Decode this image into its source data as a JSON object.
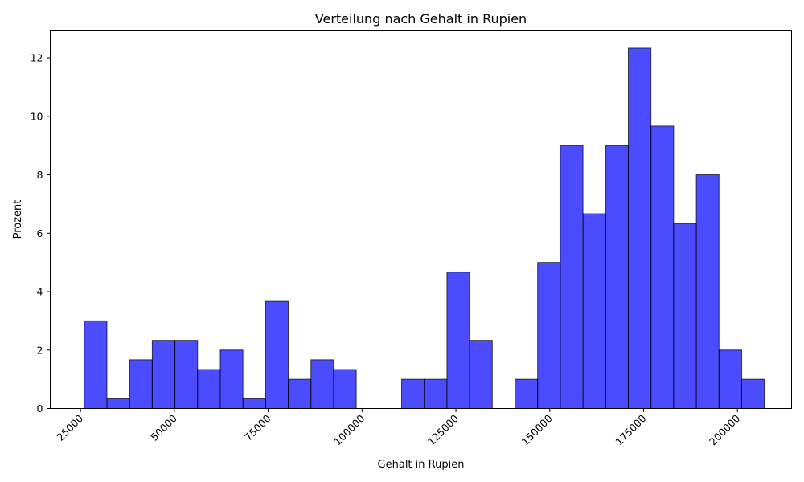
{
  "chart_data": {
    "type": "bar",
    "title": "Verteilung nach Gehalt in Rupien",
    "xlabel": "Gehalt in Rupien",
    "ylabel": "Prozent",
    "bar_color": "#0000ff",
    "edge_color": "#000000",
    "bins": [
      {
        "x0": 25994,
        "x1": 32033,
        "value": 3.0
      },
      {
        "x0": 32033,
        "x1": 38072,
        "value": 0.333
      },
      {
        "x0": 38072,
        "x1": 44111,
        "value": 1.667
      },
      {
        "x0": 44111,
        "x1": 50150,
        "value": 2.333
      },
      {
        "x0": 50150,
        "x1": 56189,
        "value": 2.333
      },
      {
        "x0": 56189,
        "x1": 62228,
        "value": 1.333
      },
      {
        "x0": 62228,
        "x1": 68267,
        "value": 2.0
      },
      {
        "x0": 68267,
        "x1": 74306,
        "value": 0.333
      },
      {
        "x0": 74306,
        "x1": 80345,
        "value": 3.667
      },
      {
        "x0": 80345,
        "x1": 86384,
        "value": 1.0
      },
      {
        "x0": 86384,
        "x1": 92423,
        "value": 1.667
      },
      {
        "x0": 92423,
        "x1": 98462,
        "value": 1.333
      },
      {
        "x0": 98462,
        "x1": 104501,
        "value": 0
      },
      {
        "x0": 104501,
        "x1": 110540,
        "value": 0
      },
      {
        "x0": 110540,
        "x1": 116579,
        "value": 1.0
      },
      {
        "x0": 116579,
        "x1": 122618,
        "value": 1.0
      },
      {
        "x0": 122618,
        "x1": 128657,
        "value": 4.667
      },
      {
        "x0": 128657,
        "x1": 134696,
        "value": 2.333
      },
      {
        "x0": 134696,
        "x1": 140735,
        "value": 0
      },
      {
        "x0": 140735,
        "x1": 146774,
        "value": 1.0
      },
      {
        "x0": 146774,
        "x1": 152813,
        "value": 5.0
      },
      {
        "x0": 152813,
        "x1": 158852,
        "value": 9.0
      },
      {
        "x0": 158852,
        "x1": 164891,
        "value": 6.667
      },
      {
        "x0": 164891,
        "x1": 170930,
        "value": 9.0
      },
      {
        "x0": 170930,
        "x1": 176969,
        "value": 12.333
      },
      {
        "x0": 176969,
        "x1": 183008,
        "value": 9.667
      },
      {
        "x0": 183008,
        "x1": 189047,
        "value": 6.333
      },
      {
        "x0": 189047,
        "x1": 195086,
        "value": 8.0
      },
      {
        "x0": 195086,
        "x1": 201125,
        "value": 2.0
      },
      {
        "x0": 201125,
        "x1": 207164,
        "value": 1.0
      }
    ],
    "xlim": [
      16936,
      214410
    ],
    "ylim": [
      0,
      12.95
    ],
    "xticks": [
      25000,
      50000,
      75000,
      100000,
      125000,
      150000,
      175000,
      200000
    ],
    "yticks": [
      0,
      2,
      4,
      6,
      8,
      10,
      12
    ],
    "grid": false
  }
}
